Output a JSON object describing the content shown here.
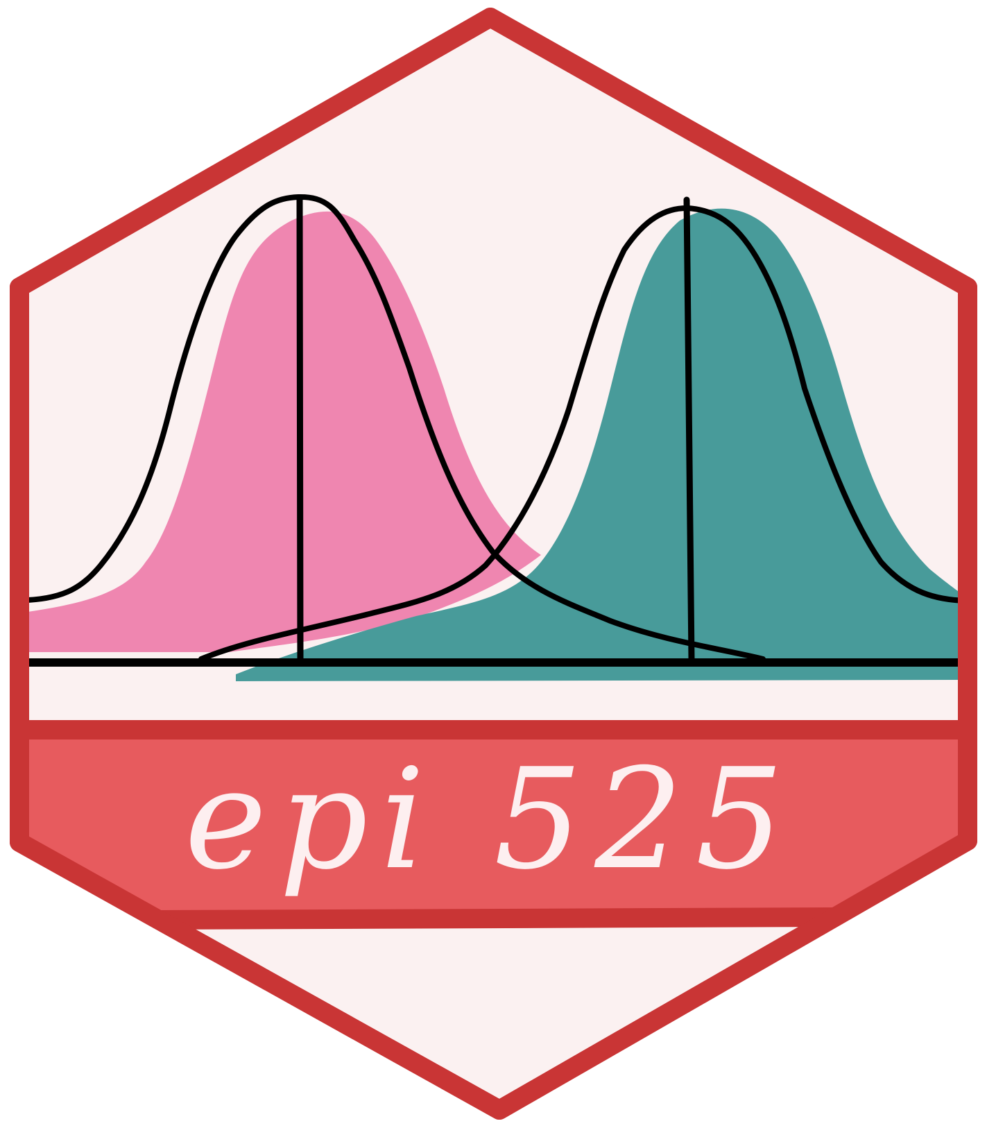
{
  "sticker": {
    "course_label": "epi 525",
    "colors": {
      "border": "#c93535",
      "hex_fill": "#fbf1f1",
      "banner": "#e75b5e",
      "banner_text": "#fdeff0",
      "left_curve_fill": "#ef86b0",
      "right_curve_fill": "#489b9a",
      "outline": "#000000"
    },
    "icons": [
      "hexagon-badge",
      "bell-curve-left",
      "bell-curve-right"
    ]
  }
}
